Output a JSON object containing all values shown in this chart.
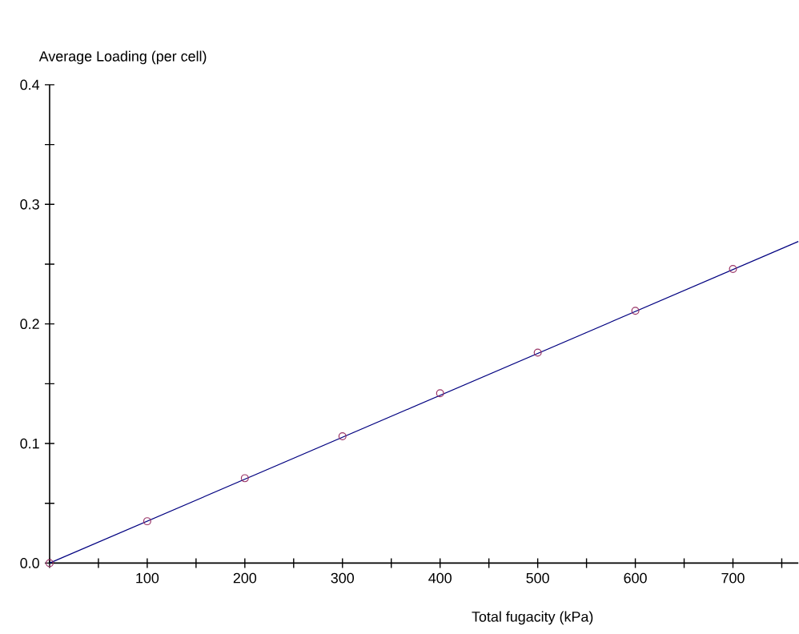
{
  "chart_data": {
    "type": "line",
    "xlabel": "Total fugacity (kPa)",
    "ylabel": "Average Loading (per cell)",
    "xlim": [
      0,
      767
    ],
    "ylim": [
      0,
      0.4
    ],
    "xticks": [
      {
        "value": 0,
        "label": null
      },
      {
        "value": 50,
        "label": null
      },
      100,
      {
        "value": 150,
        "label": null
      },
      200,
      {
        "value": 250,
        "label": null
      },
      300,
      {
        "value": 350,
        "label": null
      },
      400,
      {
        "value": 450,
        "label": null
      },
      500,
      {
        "value": 550,
        "label": null
      },
      600,
      {
        "value": 650,
        "label": null
      },
      700,
      {
        "value": 750,
        "label": null
      }
    ],
    "yticks": [
      {
        "value": 0,
        "label": "0.0"
      },
      {
        "value": 0.05,
        "label": null
      },
      0.1,
      {
        "value": 0.15,
        "label": null
      },
      0.2,
      {
        "value": 0.25,
        "label": null
      },
      0.3,
      {
        "value": 0.35,
        "label": null
      },
      0.4
    ],
    "series": [
      {
        "color": "#000080",
        "line_style": "solid",
        "marker": "none",
        "x": [
          0,
          767
        ],
        "values": [
          0,
          0.269
        ]
      },
      {
        "type": "scatter",
        "color": "#993366",
        "marker": "circle",
        "x": [
          0,
          100,
          200,
          300,
          400,
          500,
          600,
          700
        ],
        "values": [
          0,
          0.035,
          0.071,
          0.106,
          0.142,
          0.176,
          0.211,
          0.246
        ]
      }
    ]
  }
}
